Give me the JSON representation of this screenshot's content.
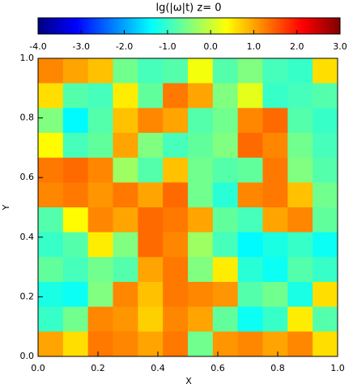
{
  "chart_data": {
    "type": "heatmap",
    "title": "lg(|ω|t) z= 0",
    "x_label": "X",
    "y_label": "Y",
    "colormap": "jet",
    "zlim": [
      -4,
      3
    ],
    "zticks": [
      {
        "value": -4,
        "label": "-4.0"
      },
      {
        "value": -3,
        "label": "-3.0"
      },
      {
        "value": -2,
        "label": "-2.0"
      },
      {
        "value": -1,
        "label": "-1.0"
      },
      {
        "value": 0,
        "label": "0.0"
      },
      {
        "value": 1,
        "label": "1.0"
      },
      {
        "value": 2,
        "label": "2.0"
      },
      {
        "value": 3,
        "label": "3.0"
      }
    ],
    "xlim": [
      0,
      1
    ],
    "ylim": [
      0,
      1
    ],
    "xticks": [
      {
        "value": 0,
        "label": "0.0"
      },
      {
        "value": 0.2,
        "label": "0.2"
      },
      {
        "value": 0.4,
        "label": "0.4"
      },
      {
        "value": 0.6,
        "label": "0.6"
      },
      {
        "value": 0.8,
        "label": "0.8"
      },
      {
        "value": 1,
        "label": "1.0"
      }
    ],
    "yticks": [
      {
        "value": 0,
        "label": "0.0"
      },
      {
        "value": 0.2,
        "label": "0.2"
      },
      {
        "value": 0.4,
        "label": "0.4"
      },
      {
        "value": 0.6,
        "label": "0.6"
      },
      {
        "value": 0.8,
        "label": "0.8"
      },
      {
        "value": 1,
        "label": "1.0"
      }
    ],
    "z": [
      [
        1.2,
        1.0,
        0.8,
        -0.6,
        -0.9,
        -0.8,
        0.3,
        -0.8,
        -0.5,
        -0.9,
        -1.0,
        0.6
      ],
      [
        0.6,
        -0.8,
        -0.9,
        0.5,
        -0.7,
        1.3,
        1.0,
        -0.5,
        0.2,
        -1.0,
        -0.9,
        -0.8
      ],
      [
        -0.5,
        -1.4,
        -0.8,
        0.8,
        1.2,
        1.0,
        -0.8,
        -0.6,
        1.2,
        1.4,
        -0.8,
        -1.0
      ],
      [
        0.4,
        -0.9,
        -0.7,
        1.0,
        -0.5,
        -0.9,
        -0.7,
        -0.5,
        1.4,
        1.2,
        -0.6,
        -0.9
      ],
      [
        1.3,
        1.4,
        1.2,
        -0.3,
        -0.8,
        0.8,
        -0.6,
        -0.8,
        -0.7,
        1.3,
        -0.5,
        -0.8
      ],
      [
        1.2,
        1.3,
        1.1,
        1.3,
        1.0,
        1.4,
        -0.6,
        -1.1,
        1.2,
        1.3,
        0.8,
        -0.6
      ],
      [
        -0.8,
        0.4,
        1.2,
        1.0,
        1.4,
        1.3,
        1.0,
        -0.7,
        -0.9,
        1.0,
        1.2,
        -0.7
      ],
      [
        -1.0,
        -0.8,
        0.5,
        -0.5,
        1.4,
        1.2,
        -0.3,
        -0.9,
        -1.4,
        -1.2,
        -1.0,
        -1.3
      ],
      [
        -0.7,
        -0.9,
        -0.6,
        -0.8,
        1.0,
        1.3,
        -0.5,
        0.5,
        -1.1,
        -1.3,
        -0.8,
        -1.0
      ],
      [
        -1.2,
        -1.3,
        -0.5,
        1.2,
        0.8,
        1.3,
        1.2,
        1.1,
        -0.8,
        -0.6,
        -1.2,
        0.6
      ],
      [
        -1.0,
        -0.6,
        1.2,
        1.1,
        0.7,
        1.2,
        1.0,
        -0.7,
        -1.3,
        -1.0,
        0.5,
        -0.8
      ],
      [
        1.0,
        0.6,
        1.3,
        1.2,
        1.0,
        1.3,
        -0.6,
        1.1,
        1.2,
        1.0,
        1.2,
        0.6
      ]
    ]
  }
}
